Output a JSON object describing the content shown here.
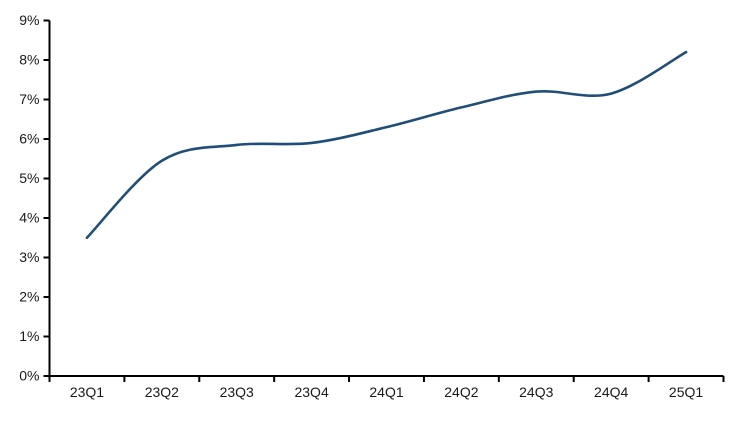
{
  "page": {
    "background_color": "#ffffff"
  },
  "chart_data": {
    "type": "line",
    "title": "",
    "xlabel": "",
    "ylabel": "",
    "categories": [
      "23Q1",
      "23Q2",
      "23Q3",
      "23Q4",
      "24Q1",
      "24Q2",
      "24Q3",
      "24Q4",
      "25Q1"
    ],
    "series": [
      {
        "name": "rate-percent",
        "color": "#1f4e79",
        "values": [
          3.5,
          5.45,
          5.85,
          5.9,
          6.3,
          6.8,
          7.2,
          7.15,
          8.2
        ]
      }
    ],
    "ylim": [
      0,
      9
    ],
    "ytick_step": 1,
    "ytick_labels": [
      "0%",
      "1%",
      "2%",
      "3%",
      "4%",
      "5%",
      "6%",
      "7%",
      "8%",
      "9%"
    ],
    "xticks_between_categories": true,
    "grid": false,
    "legend": "none",
    "smooth": true,
    "line_width": 2.6,
    "axis_color": "#000000",
    "tick_label_color": "#1a1a1a"
  }
}
